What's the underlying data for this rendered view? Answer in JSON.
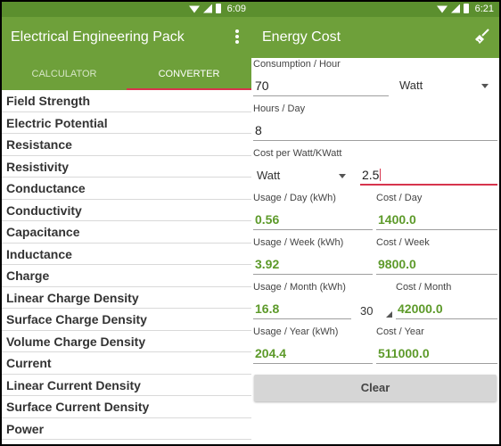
{
  "left": {
    "status": {
      "time": "6:09"
    },
    "app_title": "Electrical Engineering Pack",
    "tabs": [
      {
        "label": "CALCULATOR",
        "active": false
      },
      {
        "label": "CONVERTER",
        "active": true
      }
    ],
    "items": [
      "Field Strength",
      "Electric Potential",
      "Resistance",
      "Resistivity",
      "Conductance",
      "Conductivity",
      "Capacitance",
      "Inductance",
      "Charge",
      "Linear Charge Density",
      "Surface Charge Density",
      "Volume Charge Density",
      "Current",
      "Linear Current Density",
      "Surface Current Density",
      "Power"
    ]
  },
  "right": {
    "status": {
      "time": "6:21"
    },
    "app_title": "Energy Cost",
    "consumption": {
      "label": "Consumption / Hour",
      "value": "70",
      "unit": "Watt"
    },
    "hours": {
      "label": "Hours / Day",
      "value": "8"
    },
    "cost_per": {
      "label": "Cost per Watt/KWatt",
      "unit": "Watt",
      "value": "2.5"
    },
    "usage_day": {
      "label": "Usage / Day (kWh)",
      "value": "0.56"
    },
    "cost_day": {
      "label": "Cost / Day",
      "value": "1400.0"
    },
    "usage_week": {
      "label": "Usage / Week (kWh)",
      "value": "3.92"
    },
    "cost_week": {
      "label": "Cost / Week",
      "value": "9800.0"
    },
    "usage_month": {
      "label": "Usage / Month (kWh)",
      "value": "16.8"
    },
    "days_month": {
      "value": "30"
    },
    "cost_month": {
      "label": "Cost / Month",
      "value": "42000.0"
    },
    "usage_year": {
      "label": "Usage / Year (kWh)",
      "value": "204.4"
    },
    "cost_year": {
      "label": "Cost / Year",
      "value": "511000.0"
    },
    "clear_label": "Clear"
  },
  "colors": {
    "primary": "#6ea03a",
    "status_bar": "#5b8f2e",
    "accent": "#d7344d",
    "value_green": "#5d9a2a"
  },
  "icons": [
    "wifi-icon",
    "signal-icon",
    "battery-icon",
    "overflow-menu-icon",
    "broom-icon",
    "dropdown-arrow-icon"
  ]
}
